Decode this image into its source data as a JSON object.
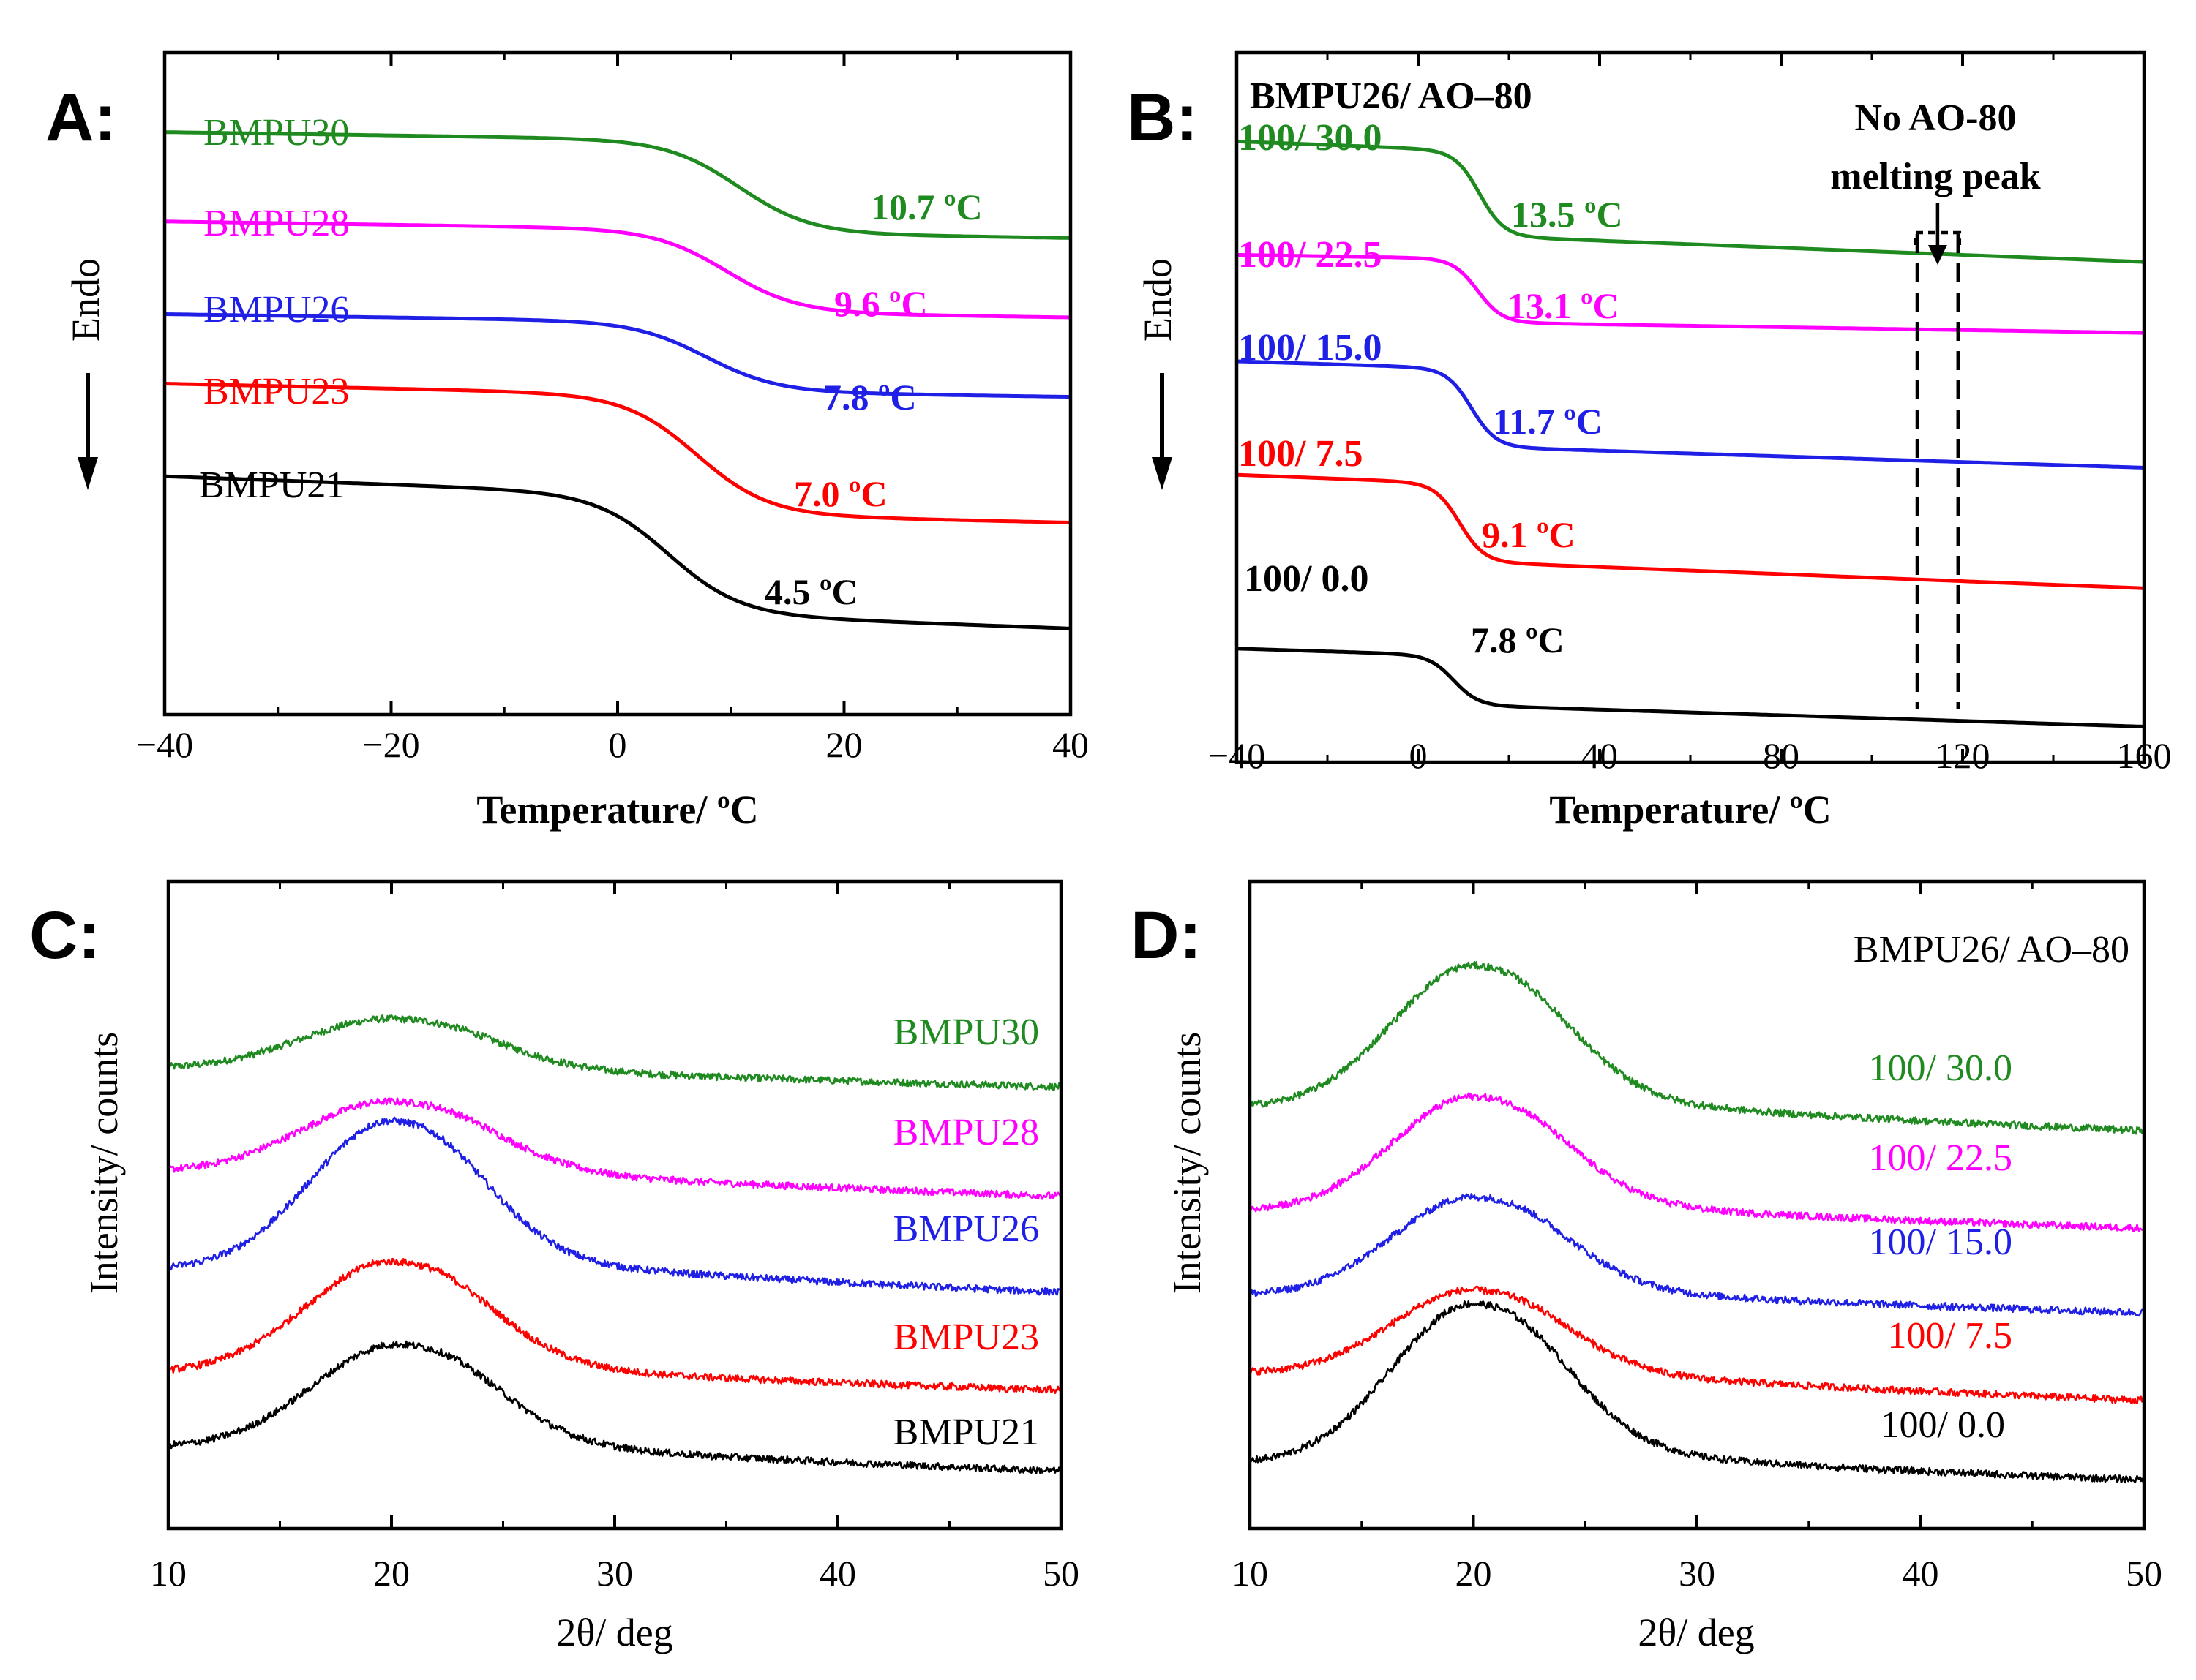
{
  "colors": {
    "black": "#000000",
    "red": "#ff0000",
    "blue": "#1f1fe6",
    "magenta": "#ff00ff",
    "green": "#1f8a1f"
  },
  "panels": {
    "A": {
      "letter": "A:"
    },
    "B": {
      "letter": "B:"
    },
    "C": {
      "letter": "C:"
    },
    "D": {
      "letter": "D:"
    }
  },
  "chart_data": [
    {
      "id": "A",
      "type": "line",
      "xlabel": "Temperature/ ºC",
      "ylabel": "Endo",
      "xlim": [
        -40,
        40
      ],
      "xticks": [
        -40,
        -20,
        0,
        20,
        40
      ],
      "xtick_labels": [
        "−40",
        "−20",
        "0",
        "20",
        "40"
      ],
      "y_units": "relative heat flow (arbitrary, offset)",
      "ylim": [
        0,
        100
      ],
      "series": [
        {
          "name": "BMPU30",
          "color": "green",
          "tg": 10.7,
          "tg_label": "10.7 ºC",
          "start": 88,
          "drop": 14,
          "slope": 2,
          "width": 7
        },
        {
          "name": "BMPU28",
          "color": "magenta",
          "tg": 9.6,
          "tg_label": "9.6 ºC",
          "start": 74.5,
          "drop": 12.5,
          "slope": 2,
          "width": 7
        },
        {
          "name": "BMPU26",
          "color": "blue",
          "tg": 7.8,
          "tg_label": "7.8 ºC",
          "start": 60.5,
          "drop": 10.5,
          "slope": 2,
          "width": 7
        },
        {
          "name": "BMPU23",
          "color": "red",
          "tg": 7.0,
          "tg_label": "7.0 ºC",
          "start": 50,
          "drop": 18,
          "slope": 3,
          "width": 7
        },
        {
          "name": "BMPU21",
          "color": "black",
          "tg": 4.5,
          "tg_label": "4.5 ºC",
          "start": 36,
          "drop": 18,
          "slope": 5,
          "width": 7
        }
      ]
    },
    {
      "id": "B",
      "type": "line",
      "title": "BMPU26/ AO–80",
      "xlabel": "Temperature/ ºC",
      "ylabel": "Endo",
      "xlim": [
        -40,
        160
      ],
      "xticks": [
        -40,
        0,
        40,
        80,
        120,
        160
      ],
      "xtick_labels": [
        "−40",
        "0",
        "40",
        "80",
        "120",
        "160"
      ],
      "y_units": "relative heat flow (arbitrary, offset)",
      "ylim": [
        0,
        100
      ],
      "annotation": {
        "text_line1": "No AO-80",
        "text_line2": "melting peak",
        "x_range": [
          110,
          119
        ]
      },
      "series": [
        {
          "name": "100/ 30.0",
          "color": "green",
          "tg": 13.5,
          "tg_label": "13.5 ºC",
          "start": 87.5,
          "drop": 12,
          "slope": 5,
          "width": 6
        },
        {
          "name": "100/ 22.5",
          "color": "magenta",
          "tg": 13.1,
          "tg_label": "13.1 ºC",
          "start": 71.5,
          "drop": 9,
          "slope": 2,
          "width": 6
        },
        {
          "name": "100/ 15.0",
          "color": "blue",
          "tg": 11.7,
          "tg_label": "11.7 ºC",
          "start": 56.5,
          "drop": 11,
          "slope": 4,
          "width": 6
        },
        {
          "name": "100/ 7.5",
          "color": "red",
          "tg": 9.1,
          "tg_label": "9.1 ºC",
          "start": 40.5,
          "drop": 11,
          "slope": 5,
          "width": 6
        },
        {
          "name": "100/ 0.0",
          "color": "black",
          "tg": 7.8,
          "tg_label": "7.8 ºC",
          "start": 16,
          "drop": 7,
          "slope": 4,
          "width": 6
        }
      ]
    },
    {
      "id": "C",
      "type": "line",
      "xlabel": "2θ/ deg",
      "ylabel": "Intensity/ counts",
      "xlim": [
        10,
        50
      ],
      "xticks": [
        10,
        20,
        30,
        40,
        50
      ],
      "xtick_labels": [
        "10",
        "20",
        "30",
        "40",
        "50"
      ],
      "y_units": "counts (arbitrary, offset)",
      "ylim": [
        0,
        100
      ],
      "series": [
        {
          "name": "BMPU30",
          "color": "green",
          "peak_x": 20,
          "left": 71,
          "right": 68,
          "amp": 8.5,
          "sigma": 4,
          "decay": 0.06
        },
        {
          "name": "BMPU28",
          "color": "magenta",
          "peak_x": 20,
          "left": 55,
          "right": 51,
          "amp": 12,
          "sigma": 4,
          "decay": 0.06
        },
        {
          "name": "BMPU26",
          "color": "blue",
          "peak_x": 20,
          "left": 40,
          "right": 36,
          "amp": 24,
          "sigma": 3.6,
          "decay": 0.07
        },
        {
          "name": "BMPU23",
          "color": "red",
          "peak_x": 20,
          "left": 24,
          "right": 21,
          "amp": 18,
          "sigma": 3.8,
          "decay": 0.07
        },
        {
          "name": "BMPU21",
          "color": "black",
          "peak_x": 20.3,
          "left": 12.5,
          "right": 8.5,
          "amp": 17,
          "sigma": 3.8,
          "decay": 0.07
        }
      ]
    },
    {
      "id": "D",
      "type": "line",
      "title": "BMPU26/ AO–80",
      "xlabel": "2θ/ deg",
      "ylabel": "Intensity/ counts",
      "xlim": [
        10,
        50
      ],
      "xticks": [
        10,
        20,
        30,
        40,
        50
      ],
      "xtick_labels": [
        "10",
        "20",
        "30",
        "40",
        "50"
      ],
      "y_units": "counts (arbitrary, offset)",
      "ylim": [
        0,
        100
      ],
      "series": [
        {
          "name": "100/ 30.0",
          "color": "green",
          "peak_x": 20,
          "left": 65,
          "right": 61,
          "amp": 23,
          "sigma": 3.6,
          "decay": 0.07
        },
        {
          "name": "100/ 22.5",
          "color": "magenta",
          "peak_x": 20,
          "left": 49,
          "right": 46,
          "amp": 18.5,
          "sigma": 3.6,
          "decay": 0.07
        },
        {
          "name": "100/ 15.0",
          "color": "blue",
          "peak_x": 20,
          "left": 36,
          "right": 33,
          "amp": 16,
          "sigma": 3.6,
          "decay": 0.07
        },
        {
          "name": "100/ 7.5",
          "color": "red",
          "peak_x": 20,
          "left": 24,
          "right": 19.5,
          "amp": 14,
          "sigma": 3.6,
          "decay": 0.07
        },
        {
          "name": "100/ 0.0",
          "color": "black",
          "peak_x": 20,
          "left": 10,
          "right": 7,
          "amp": 25.5,
          "sigma": 3.6,
          "decay": 0.07
        }
      ]
    }
  ]
}
